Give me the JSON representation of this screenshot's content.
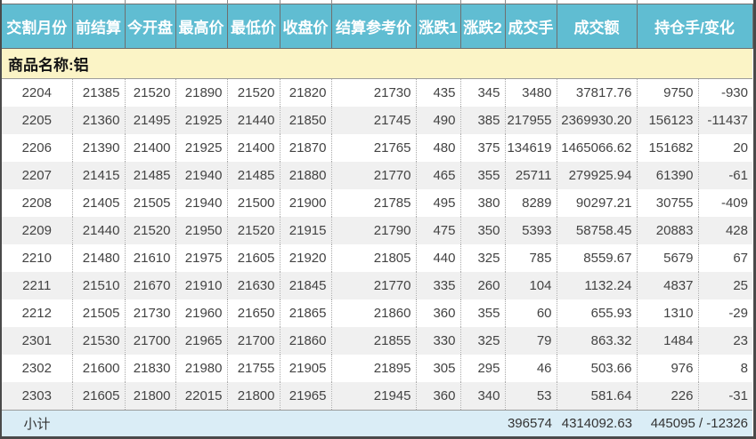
{
  "colors": {
    "header_bg": "#60bdd2",
    "commodity_bg": "#fbf4c6",
    "alt_row_bg": "#f0f0f0",
    "subtotal_bg": "#daedf6",
    "frame_border": "#4a4a4a",
    "header_text": "#ffffff"
  },
  "table": {
    "headers": [
      "交割月份",
      "前结算",
      "今开盘",
      "最高价",
      "最低价",
      "收盘价",
      "结算参考价",
      "涨跌1",
      "涨跌2",
      "成交手",
      "成交额",
      "持仓手/变化"
    ],
    "commodity_label": "商品名称:铝",
    "rows": [
      [
        "2204",
        "21385",
        "21520",
        "21890",
        "21520",
        "21820",
        "21730",
        "435",
        "345",
        "3480",
        "37817.76",
        "9750",
        "-930"
      ],
      [
        "2205",
        "21360",
        "21495",
        "21925",
        "21440",
        "21850",
        "21745",
        "490",
        "385",
        "217955",
        "2369930.20",
        "156123",
        "-11437"
      ],
      [
        "2206",
        "21390",
        "21400",
        "21925",
        "21400",
        "21870",
        "21765",
        "480",
        "375",
        "134619",
        "1465066.62",
        "151682",
        "20"
      ],
      [
        "2207",
        "21415",
        "21485",
        "21940",
        "21485",
        "21880",
        "21770",
        "465",
        "355",
        "25711",
        "279925.94",
        "61390",
        "-61"
      ],
      [
        "2208",
        "21405",
        "21505",
        "21940",
        "21500",
        "21900",
        "21785",
        "495",
        "380",
        "8289",
        "90297.21",
        "30755",
        "-409"
      ],
      [
        "2209",
        "21440",
        "21520",
        "21950",
        "21520",
        "21915",
        "21790",
        "475",
        "350",
        "5393",
        "58758.45",
        "20883",
        "428"
      ],
      [
        "2210",
        "21480",
        "21610",
        "21975",
        "21605",
        "21920",
        "21805",
        "440",
        "325",
        "785",
        "8559.67",
        "5679",
        "67"
      ],
      [
        "2211",
        "21510",
        "21670",
        "21910",
        "21630",
        "21845",
        "21770",
        "335",
        "260",
        "104",
        "1132.24",
        "4837",
        "25"
      ],
      [
        "2212",
        "21505",
        "21730",
        "21960",
        "21650",
        "21865",
        "21860",
        "360",
        "355",
        "60",
        "655.93",
        "1310",
        "-29"
      ],
      [
        "2301",
        "21530",
        "21700",
        "21965",
        "21700",
        "21860",
        "21855",
        "330",
        "325",
        "79",
        "863.32",
        "1484",
        "23"
      ],
      [
        "2302",
        "21600",
        "21830",
        "21980",
        "21755",
        "21905",
        "21895",
        "305",
        "295",
        "46",
        "503.66",
        "976",
        "8"
      ],
      [
        "2303",
        "21605",
        "21800",
        "22015",
        "21800",
        "21965",
        "21945",
        "360",
        "340",
        "53",
        "581.64",
        "226",
        "-31"
      ]
    ],
    "subtotal": {
      "label": "小计",
      "volume_total": "396574",
      "turnover_total": "4314092.63",
      "open_interest_total": "445095 / -12326"
    }
  }
}
